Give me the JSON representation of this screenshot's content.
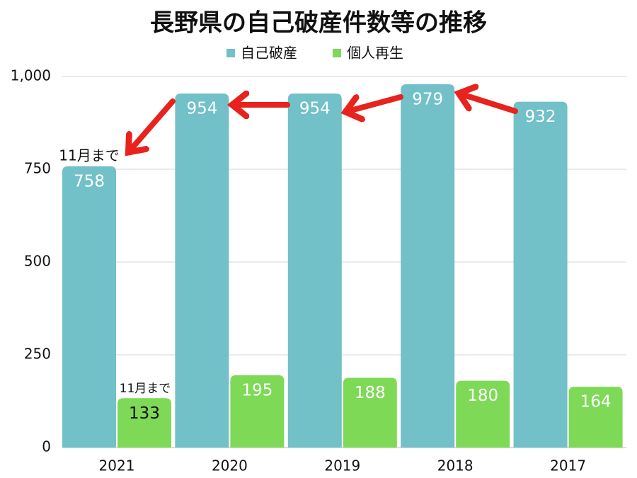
{
  "chart_data": {
    "type": "bar",
    "title": "長野県の自己破産件数等の推移",
    "categories": [
      "2021",
      "2020",
      "2019",
      "2018",
      "2017"
    ],
    "series": [
      {
        "name": "自己破産",
        "color": "#72c0c8",
        "values": [
          758,
          954,
          954,
          979,
          932
        ]
      },
      {
        "name": "個人再生",
        "color": "#7ed957",
        "values": [
          133,
          195,
          188,
          180,
          164
        ]
      }
    ],
    "ylim": [
      0,
      1000
    ],
    "yticks": [
      0,
      250,
      500,
      750,
      {
        "value": 1000,
        "label": "1,000"
      }
    ],
    "grid": true,
    "legend": "top",
    "annotations": [
      "11月まで",
      "11月まで"
    ]
  }
}
